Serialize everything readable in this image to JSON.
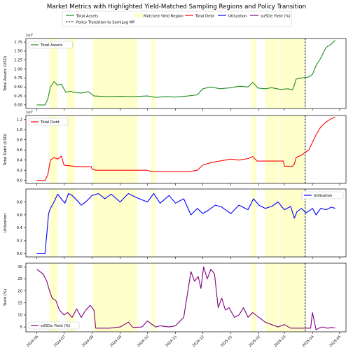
{
  "figure": {
    "title": "Market Metrics with Highlighted Yield-Matched Sampling Regions and Policy Transition"
  },
  "legend": {
    "items": [
      {
        "label": "Total Assets",
        "color": "#228b22",
        "style": "line"
      },
      {
        "label": "Matched Yield Region",
        "color": "#ffffcc",
        "style": "patch"
      },
      {
        "label": "Total Debt",
        "color": "#ff0000",
        "style": "line"
      },
      {
        "label": "Utilization",
        "color": "#0000ff",
        "style": "line"
      },
      {
        "label": "sUSDe Yield (%)",
        "color": "#800080",
        "style": "line"
      },
      {
        "label": "Policy Transition to SemiLog MP",
        "color": "#000000",
        "style": "dashed"
      }
    ]
  },
  "x_axis": {
    "ticks": [
      "2024-06",
      "2024-07",
      "2024-08",
      "2024-09",
      "2024-10",
      "2024-11",
      "2024-12",
      "2025-01",
      "2025-02",
      "2025-03",
      "2025-04",
      "2025-05"
    ]
  },
  "chart_data": [
    {
      "type": "line",
      "ylabel": "Total Assets (USD)",
      "offset_text": "1e7",
      "legend": "Total Assets",
      "legend_position": "upper-left",
      "color": "#228b22",
      "ylim": [
        -0.1,
        1.85
      ],
      "yticks": [
        "0.00",
        "0.25",
        "0.50",
        "0.75",
        "1.00",
        "1.25",
        "1.50",
        "1.75"
      ],
      "ytick_values": [
        0,
        0.25,
        0.5,
        0.75,
        1.0,
        1.25,
        1.5,
        1.75
      ],
      "x": [
        "2024-06-01",
        "2024-06-10",
        "2024-06-13",
        "2024-06-16",
        "2024-06-20",
        "2024-06-24",
        "2024-06-28",
        "2024-07-03",
        "2024-07-08",
        "2024-07-12",
        "2024-07-20",
        "2024-07-28",
        "2024-08-03",
        "2024-08-10",
        "2024-08-20",
        "2024-09-01",
        "2024-09-15",
        "2024-10-01",
        "2024-10-10",
        "2024-10-20",
        "2024-11-01",
        "2024-11-15",
        "2024-11-25",
        "2024-12-01",
        "2024-12-10",
        "2024-12-20",
        "2025-01-01",
        "2025-01-10",
        "2025-01-20",
        "2025-01-25",
        "2025-01-31",
        "2025-02-08",
        "2025-02-15",
        "2025-02-25",
        "2025-03-05",
        "2025-03-10",
        "2025-03-12",
        "2025-03-14",
        "2025-03-20",
        "2025-03-28",
        "2025-04-01",
        "2025-04-05",
        "2025-04-10",
        "2025-04-16",
        "2025-04-22",
        "2025-04-26"
      ],
      "values": [
        0.0,
        0.0,
        0.15,
        0.5,
        0.65,
        0.55,
        0.58,
        0.35,
        0.38,
        0.35,
        0.33,
        0.37,
        0.25,
        0.24,
        0.23,
        0.24,
        0.23,
        0.25,
        0.21,
        0.23,
        0.22,
        0.25,
        0.28,
        0.45,
        0.5,
        0.45,
        0.48,
        0.52,
        0.5,
        0.63,
        0.47,
        0.45,
        0.48,
        0.43,
        0.45,
        0.42,
        0.55,
        0.72,
        0.75,
        0.78,
        0.85,
        1.1,
        1.3,
        1.6,
        1.7,
        1.8
      ]
    },
    {
      "type": "line",
      "ylabel": "Total Debt (USD)",
      "offset_text": "1e7",
      "legend": "Total Debt",
      "legend_position": "upper-left",
      "color": "#ff0000",
      "ylim": [
        -0.06,
        1.28
      ],
      "yticks": [
        "0.0",
        "0.2",
        "0.4",
        "0.6",
        "0.8",
        "1.0",
        "1.2"
      ],
      "ytick_values": [
        0,
        0.2,
        0.4,
        0.6,
        0.8,
        1.0,
        1.2
      ],
      "x": [
        "2024-06-01",
        "2024-06-10",
        "2024-06-13",
        "2024-06-16",
        "2024-06-20",
        "2024-06-24",
        "2024-06-28",
        "2024-07-01",
        "2024-07-15",
        "2024-07-31",
        "2024-08-01",
        "2024-08-05",
        "2024-08-15",
        "2024-09-01",
        "2024-09-15",
        "2024-10-01",
        "2024-10-05",
        "2024-10-20",
        "2024-11-01",
        "2024-11-15",
        "2024-11-25",
        "2024-12-01",
        "2024-12-10",
        "2024-12-20",
        "2025-01-01",
        "2025-01-10",
        "2025-01-20",
        "2025-01-25",
        "2025-01-30",
        "2025-02-15",
        "2025-02-28",
        "2025-03-01",
        "2025-03-10",
        "2025-03-12",
        "2025-03-14",
        "2025-03-20",
        "2025-03-28",
        "2025-04-01",
        "2025-04-05",
        "2025-04-10",
        "2025-04-16",
        "2025-04-22",
        "2025-04-26"
      ],
      "values": [
        0.0,
        0.0,
        0.1,
        0.4,
        0.45,
        0.42,
        0.48,
        0.3,
        0.27,
        0.27,
        0.22,
        0.2,
        0.2,
        0.2,
        0.2,
        0.2,
        0.17,
        0.17,
        0.17,
        0.17,
        0.2,
        0.3,
        0.35,
        0.38,
        0.42,
        0.4,
        0.43,
        0.47,
        0.38,
        0.38,
        0.38,
        0.28,
        0.28,
        0.32,
        0.45,
        0.5,
        0.6,
        0.75,
        0.9,
        1.05,
        1.15,
        1.22,
        1.25
      ]
    },
    {
      "type": "line",
      "ylabel": "Utilization",
      "legend": "Utilization",
      "legend_position": "upper-right",
      "color": "#0000ff",
      "ylim": [
        -0.05,
        1.0
      ],
      "yticks": [
        "0.0",
        "0.2",
        "0.4",
        "0.6",
        "0.8"
      ],
      "ytick_values": [
        0,
        0.2,
        0.4,
        0.6,
        0.8
      ],
      "x": [
        "2024-06-01",
        "2024-06-10",
        "2024-06-12",
        "2024-06-14",
        "2024-06-16",
        "2024-06-20",
        "2024-06-24",
        "2024-06-28",
        "2024-07-02",
        "2024-07-06",
        "2024-07-10",
        "2024-07-15",
        "2024-07-20",
        "2024-07-25",
        "2024-08-01",
        "2024-08-08",
        "2024-08-15",
        "2024-08-22",
        "2024-09-01",
        "2024-09-10",
        "2024-09-20",
        "2024-10-01",
        "2024-10-08",
        "2024-10-15",
        "2024-10-25",
        "2024-11-01",
        "2024-11-10",
        "2024-11-18",
        "2024-11-25",
        "2024-12-01",
        "2024-12-08",
        "2024-12-15",
        "2024-12-22",
        "2025-01-01",
        "2025-01-10",
        "2025-01-20",
        "2025-01-26",
        "2025-02-01",
        "2025-02-08",
        "2025-02-15",
        "2025-02-22",
        "2025-03-01",
        "2025-03-08",
        "2025-03-12",
        "2025-03-15",
        "2025-03-20",
        "2025-03-25",
        "2025-04-01",
        "2025-04-05",
        "2025-04-10",
        "2025-04-16",
        "2025-04-22",
        "2025-04-26"
      ],
      "values": [
        0.0,
        0.0,
        0.3,
        0.62,
        0.7,
        0.8,
        0.92,
        0.85,
        0.78,
        0.93,
        0.9,
        0.83,
        0.75,
        0.8,
        0.9,
        0.93,
        0.85,
        0.92,
        0.8,
        0.93,
        0.86,
        0.8,
        0.93,
        0.78,
        0.9,
        0.78,
        0.85,
        0.6,
        0.7,
        0.62,
        0.68,
        0.75,
        0.72,
        0.62,
        0.75,
        0.68,
        0.85,
        0.75,
        0.7,
        0.73,
        0.8,
        0.68,
        0.73,
        0.55,
        0.65,
        0.7,
        0.63,
        0.7,
        0.6,
        0.7,
        0.68,
        0.72,
        0.7
      ]
    },
    {
      "type": "line",
      "ylabel": "Yield (%)",
      "legend": "sUSDe Yield (%)",
      "legend_position": "lower-left",
      "color": "#800080",
      "ylim": [
        3.0,
        31.5
      ],
      "yticks": [
        "5",
        "10",
        "15",
        "20",
        "25",
        "30"
      ],
      "ytick_values": [
        5,
        10,
        15,
        20,
        25,
        30
      ],
      "x": [
        "2024-06-01",
        "2024-06-08",
        "2024-06-12",
        "2024-06-15",
        "2024-06-18",
        "2024-06-22",
        "2024-06-26",
        "2024-07-01",
        "2024-07-05",
        "2024-07-10",
        "2024-07-15",
        "2024-07-20",
        "2024-07-25",
        "2024-07-30",
        "2024-08-03",
        "2024-08-05",
        "2024-08-20",
        "2024-09-01",
        "2024-09-10",
        "2024-09-15",
        "2024-09-25",
        "2024-10-01",
        "2024-10-10",
        "2024-10-15",
        "2024-10-25",
        "2024-11-01",
        "2024-11-10",
        "2024-11-18",
        "2024-11-22",
        "2024-11-26",
        "2024-11-29",
        "2024-12-02",
        "2024-12-06",
        "2024-12-10",
        "2024-12-14",
        "2024-12-18",
        "2024-12-22",
        "2024-12-26",
        "2024-12-30",
        "2025-01-05",
        "2025-01-10",
        "2025-01-15",
        "2025-01-20",
        "2025-01-25",
        "2025-02-01",
        "2025-02-08",
        "2025-02-15",
        "2025-02-22",
        "2025-03-01",
        "2025-03-08",
        "2025-03-15",
        "2025-03-20",
        "2025-03-25",
        "2025-03-30",
        "2025-04-01",
        "2025-04-05",
        "2025-04-08",
        "2025-04-12",
        "2025-04-18",
        "2025-04-22",
        "2025-04-26"
      ],
      "values": [
        29,
        27,
        24,
        20,
        17,
        16,
        12,
        10,
        11,
        9,
        12.5,
        9,
        12,
        14,
        12,
        4.5,
        4.5,
        5,
        7,
        4.8,
        5,
        7.5,
        5,
        5.5,
        5,
        5.5,
        9,
        28,
        24,
        26,
        21,
        30,
        25,
        29,
        27,
        13,
        17,
        12,
        13,
        9,
        10,
        13,
        9,
        11,
        9,
        7,
        6,
        5,
        6,
        4.5,
        4.5,
        4.5,
        4.5,
        4.5,
        11,
        3.8,
        4.5,
        5,
        4.5,
        4.8,
        4.6
      ]
    }
  ],
  "regions": [
    [
      "2024-06-15",
      "2024-06-24"
    ],
    [
      "2024-07-04",
      "2024-07-13"
    ],
    [
      "2024-08-02",
      "2024-09-20"
    ],
    [
      "2024-10-05",
      "2024-10-10"
    ],
    [
      "2025-01-24",
      "2025-01-29"
    ],
    [
      "2025-02-08",
      "2025-02-22"
    ],
    [
      "2025-02-23",
      "2025-03-24"
    ]
  ],
  "policy_transition_date": "2025-03-24"
}
